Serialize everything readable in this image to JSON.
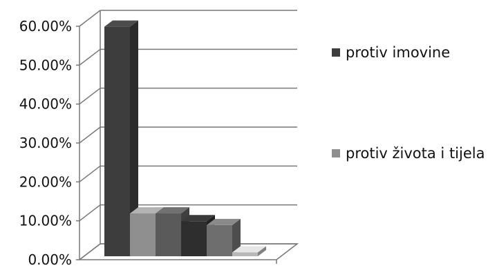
{
  "chart_data": {
    "type": "bar",
    "categories": [
      "",
      "",
      "",
      "",
      "",
      ""
    ],
    "series_values": [
      0.59,
      0.11,
      0.11,
      0.09,
      0.08,
      0.01
    ],
    "bar_colors": [
      "#3d3d3d",
      "#8f8f8f",
      "#5a5a5a",
      "#2e2e2e",
      "#6e6e6e",
      "#b8b8b8"
    ],
    "legend": [
      {
        "label": "protiv imovine",
        "color": "#3d3d3d"
      },
      {
        "label": "protiv života i tijela",
        "color": "#8f8f8f"
      }
    ],
    "y_ticks": [
      "0.00%",
      "10.00%",
      "20.00%",
      "30.00%",
      "40.00%",
      "50.00%",
      "60.00%"
    ],
    "ylim": [
      0,
      0.6
    ],
    "grid": true,
    "legend_position": "right",
    "style": "3d-bar"
  }
}
